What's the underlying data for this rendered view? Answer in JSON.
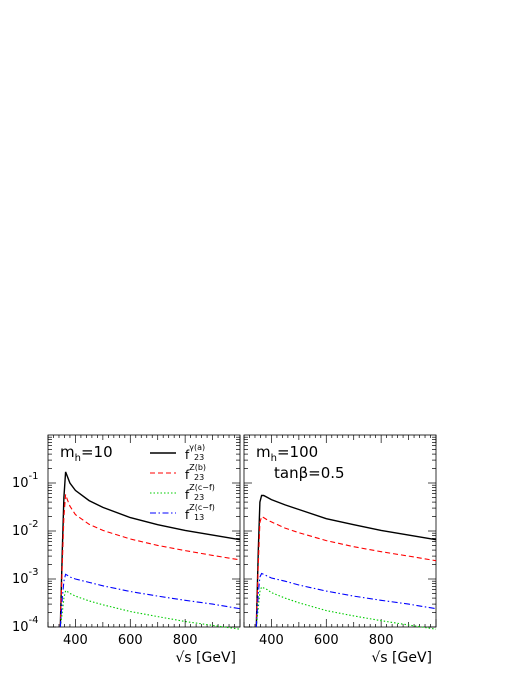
{
  "chart_data": [
    {
      "type": "line",
      "panel_label": {
        "base": "m",
        "sub": "h",
        "rest": "=10"
      },
      "annotation": "",
      "xlabel": "√s [GeV]",
      "ylabel": "",
      "xlim": [
        300,
        1000
      ],
      "ylim": [
        0.0001,
        1
      ],
      "yscale": "log",
      "x_ticks": [
        "400",
        "600",
        "800"
      ],
      "y_ticks": [
        {
          "base": "10",
          "exp": "-1"
        },
        {
          "base": "10",
          "exp": "-2"
        },
        {
          "base": "10",
          "exp": "-3"
        },
        {
          "base": "10",
          "exp": "-4"
        }
      ],
      "grid": false,
      "legend_position": "top-right",
      "series": [
        {
          "name": "f23 γ(a)",
          "label": {
            "main": "f",
            "sub": "23",
            "sup": "γ(a)"
          },
          "color": "#000000",
          "style": "solid",
          "x": [
            345,
            352,
            358,
            364,
            370,
            380,
            400,
            450,
            500,
            600,
            700,
            800,
            900,
            1000
          ],
          "y": [
            0.0001,
            0.004,
            0.05,
            0.17,
            0.14,
            0.1,
            0.07,
            0.043,
            0.031,
            0.019,
            0.0135,
            0.0103,
            0.0082,
            0.0066
          ]
        },
        {
          "name": "f23 Z(b)",
          "label": {
            "main": "f",
            "sub": "23",
            "sup": "Z(b)"
          },
          "color": "#ff0000",
          "style": "dashed",
          "x": [
            345,
            352,
            358,
            364,
            370,
            380,
            400,
            450,
            500,
            600,
            700,
            800,
            900,
            1000
          ],
          "y": [
            0.0001,
            0.002,
            0.02,
            0.058,
            0.046,
            0.033,
            0.022,
            0.0138,
            0.0103,
            0.0068,
            0.005,
            0.0039,
            0.0031,
            0.0025
          ]
        },
        {
          "name": "f23 Z(c-f)",
          "label": {
            "main": "f",
            "sub": "23",
            "sup": "Z(c−f)"
          },
          "color": "#00cc00",
          "style": "dotted",
          "x": [
            345,
            352,
            358,
            364,
            370,
            380,
            400,
            450,
            500,
            600,
            700,
            800,
            900,
            1000
          ],
          "y": [
            0.0001,
            0.0002,
            0.0004,
            0.00057,
            0.00055,
            0.0005,
            0.00044,
            0.00035,
            0.00029,
            0.00021,
            0.000165,
            0.00013,
            0.000108,
            9e-05
          ]
        },
        {
          "name": "f13 Z(c-f)",
          "label": {
            "main": "f",
            "sub": "13",
            "sup": "Z(c−f)"
          },
          "color": "#0000ff",
          "style": "dashdot",
          "x": [
            345,
            352,
            358,
            364,
            370,
            380,
            400,
            450,
            500,
            600,
            700,
            800,
            900,
            1000
          ],
          "y": [
            0.0001,
            0.0004,
            0.0009,
            0.00125,
            0.0012,
            0.0011,
            0.001,
            0.00085,
            0.00072,
            0.00055,
            0.00044,
            0.00036,
            0.0003,
            0.00024
          ]
        }
      ]
    },
    {
      "type": "line",
      "panel_label": {
        "base": "m",
        "sub": "h",
        "rest": "=100"
      },
      "annotation": "tanβ=0.5",
      "xlabel": "√s [GeV]",
      "ylabel": "",
      "xlim": [
        300,
        1000
      ],
      "ylim": [
        0.0001,
        1
      ],
      "yscale": "log",
      "x_ticks": [
        "400",
        "600",
        "800"
      ],
      "y_ticks": [],
      "grid": false,
      "legend_position": "",
      "series": [
        {
          "name": "f23 γ(a)",
          "color": "#000000",
          "style": "solid",
          "x": [
            345,
            352,
            358,
            364,
            372,
            385,
            400,
            450,
            500,
            600,
            700,
            800,
            900,
            1000
          ],
          "y": [
            0.0001,
            0.004,
            0.04,
            0.055,
            0.055,
            0.05,
            0.045,
            0.035,
            0.028,
            0.018,
            0.0135,
            0.0103,
            0.0082,
            0.0066
          ]
        },
        {
          "name": "f23 Z(b)",
          "color": "#ff0000",
          "style": "dashed",
          "x": [
            345,
            352,
            358,
            364,
            372,
            385,
            400,
            450,
            500,
            600,
            700,
            800,
            900,
            1000
          ],
          "y": [
            0.0001,
            0.002,
            0.015,
            0.02,
            0.019,
            0.017,
            0.0155,
            0.0115,
            0.0092,
            0.0063,
            0.0047,
            0.0037,
            0.003,
            0.0024
          ]
        },
        {
          "name": "f23 Z(c-f)",
          "color": "#00cc00",
          "style": "dotted",
          "x": [
            345,
            352,
            358,
            364,
            372,
            385,
            400,
            450,
            500,
            600,
            700,
            800,
            900,
            1000
          ],
          "y": [
            0.0001,
            0.00025,
            0.00055,
            0.00068,
            0.00065,
            0.0006,
            0.00052,
            0.0004,
            0.00032,
            0.00022,
            0.00017,
            0.000135,
            0.00011,
            9e-05
          ]
        },
        {
          "name": "f13 Z(c-f)",
          "color": "#0000ff",
          "style": "dashdot",
          "x": [
            345,
            352,
            358,
            364,
            372,
            385,
            400,
            450,
            500,
            600,
            700,
            800,
            900,
            1000
          ],
          "y": [
            0.0001,
            0.0005,
            0.0011,
            0.0013,
            0.00125,
            0.00115,
            0.00105,
            0.0009,
            0.00075,
            0.00056,
            0.00044,
            0.00036,
            0.0003,
            0.00024
          ]
        }
      ]
    }
  ]
}
